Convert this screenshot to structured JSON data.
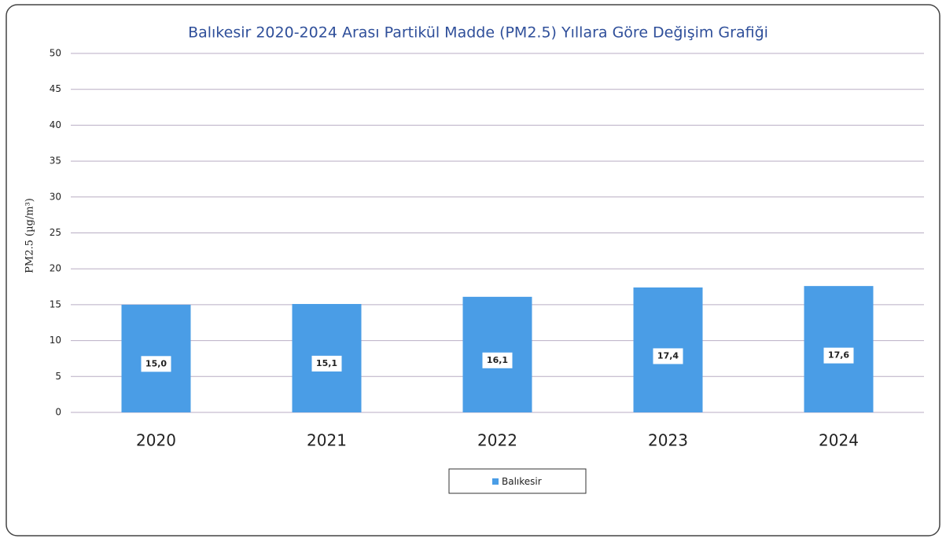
{
  "chart_data": {
    "type": "bar",
    "title": "Balıkesir 2020-2024 Arası Partikül Madde (PM2.5) Yıllara Göre Değişim Grafiği",
    "y_label": "PM2.5 (µg/m³)",
    "categories": [
      "2020",
      "2021",
      "2022",
      "2023",
      "2024"
    ],
    "series": [
      {
        "name": "Balıkesir",
        "color": "#4a9de6",
        "values": [
          15.0,
          15.1,
          16.1,
          17.4,
          17.6
        ],
        "value_labels": [
          "15,0",
          "15,1",
          "16,1",
          "17,4",
          "17,6"
        ]
      }
    ],
    "ylim": [
      0,
      50
    ],
    "yticks": [
      0,
      5,
      10,
      15,
      20,
      25,
      30,
      35,
      40,
      45,
      50
    ],
    "grid": true,
    "legend": "bottom"
  }
}
